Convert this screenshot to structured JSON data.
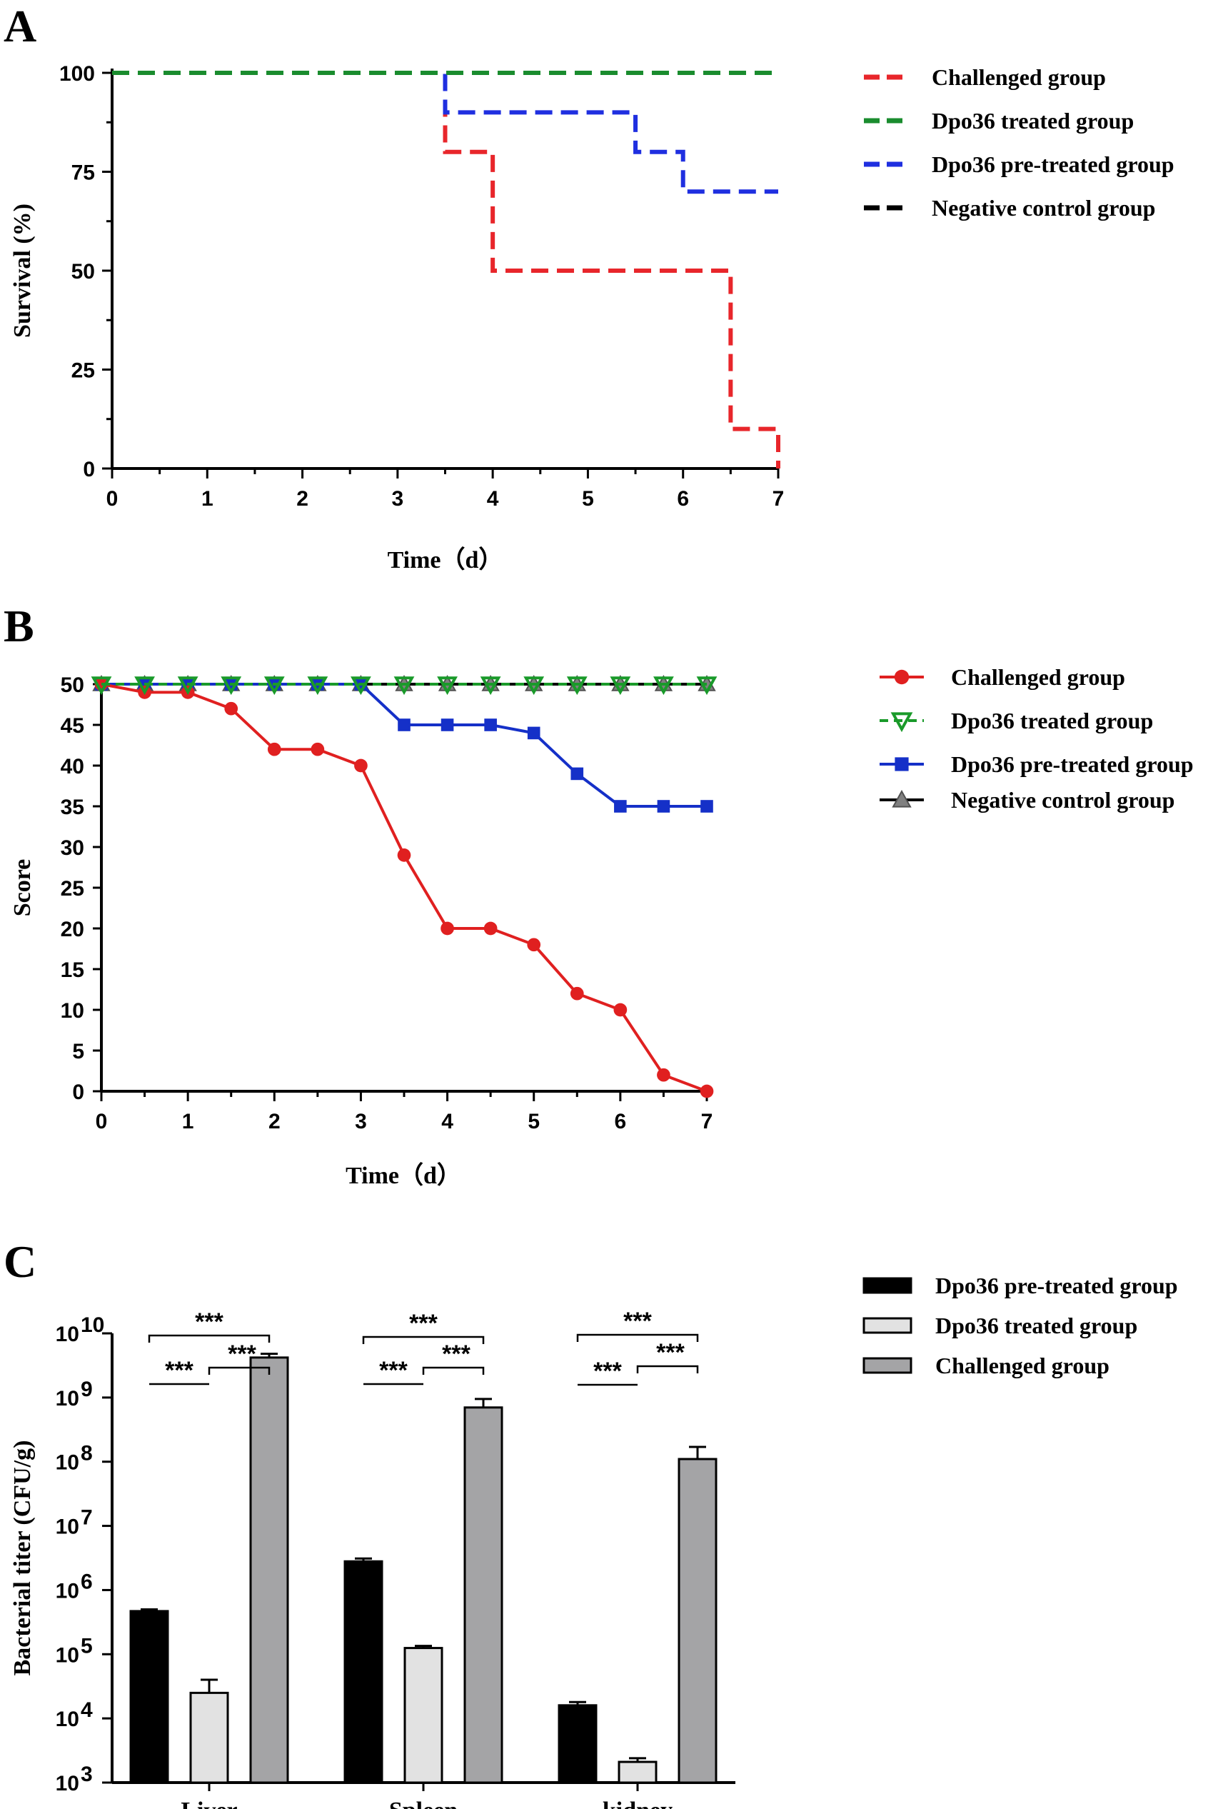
{
  "chart_data": [
    {
      "panel": "A",
      "type": "line",
      "subtype": "step",
      "xlabel": "Time（d）",
      "ylabel": "Survival (%)",
      "xlim": [
        0,
        7
      ],
      "ylim": [
        0,
        100
      ],
      "xticks": [
        "0",
        "1",
        "2",
        "3",
        "4",
        "5",
        "6",
        "7"
      ],
      "yticks": [
        "0",
        "25",
        "50",
        "75",
        "100"
      ],
      "legend_position": "right",
      "series": [
        {
          "name": "Challenged group",
          "color": "#e8262b",
          "style": "dashed",
          "x": [
            0,
            3.5,
            4,
            6.5,
            7
          ],
          "values": [
            100,
            80,
            50,
            10,
            0
          ]
        },
        {
          "name": "Dpo36 treated group",
          "color": "#1a8c2e",
          "style": "dashed",
          "x": [
            0,
            7
          ],
          "values": [
            100,
            100
          ]
        },
        {
          "name": "Dpo36 pre-treated group",
          "color": "#1f2fe0",
          "style": "dashed",
          "x": [
            0,
            3.5,
            5.5,
            6,
            7
          ],
          "values": [
            100,
            90,
            80,
            70,
            70
          ]
        },
        {
          "name": "Negative control group",
          "color": "#000000",
          "style": "dashed",
          "x": [
            0,
            7
          ],
          "values": [
            100,
            100
          ]
        }
      ]
    },
    {
      "panel": "B",
      "type": "line",
      "xlabel": "Time（d）",
      "ylabel": "Score",
      "xlim": [
        0,
        7
      ],
      "ylim": [
        0,
        50
      ],
      "xticks": [
        "0",
        "1",
        "2",
        "3",
        "4",
        "5",
        "6",
        "7"
      ],
      "yticks": [
        "0",
        "5",
        "10",
        "15",
        "20",
        "25",
        "30",
        "35",
        "40",
        "45",
        "50"
      ],
      "legend_position": "right",
      "x": [
        0,
        0.5,
        1,
        1.5,
        2,
        2.5,
        3,
        3.5,
        4,
        4.5,
        5,
        5.5,
        6,
        6.5,
        7
      ],
      "series": [
        {
          "name": "Challenged group",
          "color": "#e02020",
          "marker": "circle",
          "values": [
            50,
            49,
            49,
            47,
            42,
            42,
            40,
            29,
            20,
            20,
            18,
            12,
            10,
            2,
            0
          ]
        },
        {
          "name": "Dpo36 treated group",
          "color": "#1a9a2a",
          "marker": "triangle-down",
          "values": [
            50,
            50,
            50,
            50,
            50,
            50,
            50,
            50,
            50,
            50,
            50,
            50,
            50,
            50,
            50
          ]
        },
        {
          "name": "Dpo36 pre-treated group",
          "color": "#1530c8",
          "marker": "square",
          "values": [
            50,
            50,
            50,
            50,
            50,
            50,
            50,
            45,
            45,
            45,
            44,
            39,
            35,
            35,
            35
          ]
        },
        {
          "name": "Negative control group",
          "color": "#000000",
          "marker": "triangle-up",
          "values": [
            50,
            50,
            50,
            50,
            50,
            50,
            50,
            50,
            50,
            50,
            50,
            50,
            50,
            50,
            50
          ]
        }
      ]
    },
    {
      "panel": "C",
      "type": "bar",
      "yscale": "log",
      "ylabel": "Bacterial titer (CFU/g)",
      "ylim": [
        1000,
        10000000000
      ],
      "ytick_exponents": [
        "3",
        "4",
        "5",
        "6",
        "7",
        "8",
        "9",
        "10"
      ],
      "ytick_base": "10",
      "categories": [
        "Liver",
        "Spleen",
        "kidney"
      ],
      "legend_position": "right",
      "series": [
        {
          "name": "Dpo36 pre-treated group",
          "color": "#000000",
          "values": [
            470000,
            2800000,
            16000
          ],
          "errors": [
            500000,
            3100000,
            18000
          ]
        },
        {
          "name": "Dpo36 treated group",
          "color": "#e2e2e2",
          "values": [
            25000,
            125000,
            2100
          ],
          "errors": [
            40000,
            135000,
            2400
          ]
        },
        {
          "name": "Challenged group",
          "color": "#a4a4a6",
          "values": [
            4200000000,
            700000000,
            110000000
          ],
          "errors": [
            4800000000,
            950000000,
            170000000
          ]
        }
      ],
      "significance": [
        {
          "category": "Liver",
          "labels": [
            "***",
            "***",
            "***"
          ]
        },
        {
          "category": "Spleen",
          "labels": [
            "***",
            "***",
            "***"
          ]
        },
        {
          "category": "kidney",
          "labels": [
            "***",
            "***",
            "***"
          ]
        }
      ]
    }
  ]
}
